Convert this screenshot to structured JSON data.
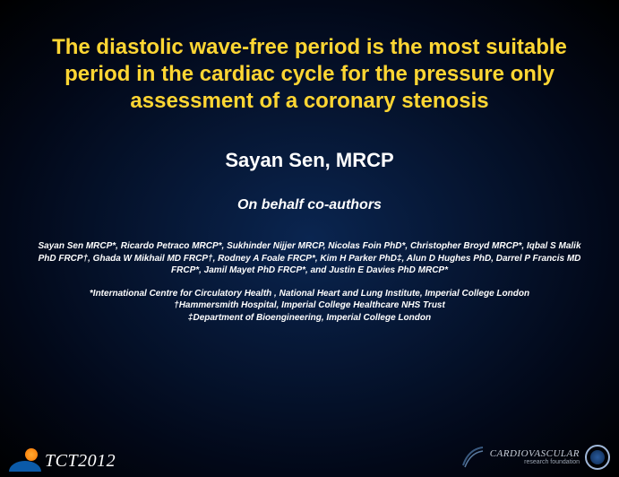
{
  "colors": {
    "title": "#ffd633",
    "text": "#ffffff",
    "bg_center": "#0a2550",
    "bg_edge": "#000000"
  },
  "typography": {
    "title_fontsize": 24,
    "presenter_fontsize": 22,
    "behalf_fontsize": 16,
    "authors_fontsize": 10,
    "family": "Arial"
  },
  "title": "The diastolic wave-free period is the most suitable period in the cardiac cycle for the pressure only assessment of a coronary stenosis",
  "presenter": "Sayan Sen, MRCP",
  "behalf": "On behalf co-authors",
  "authors": "Sayan Sen MRCP*, Ricardo Petraco MRCP*, Sukhinder Nijjer MRCP, Nicolas Foin PhD*, Christopher Broyd MRCP*, Iqbal S Malik PhD FRCP†, Ghada W Mikhail MD FRCP†, Rodney A Foale FRCP*, Kim H Parker PhD‡, Alun D Hughes PhD, Darrel P Francis MD FRCP*, Jamil Mayet PhD FRCP*, and Justin E Davies PhD MRCP*",
  "affiliations": "*International Centre for Circulatory Health , National Heart and Lung Institute, Imperial College London\n†Hammersmith Hospital, Imperial College Healthcare NHS Trust\n‡Department of Bioengineering, Imperial College London",
  "footer": {
    "tct_label": "TCT2012",
    "crf_main": "CARDIOVASCULAR",
    "crf_sub": "research foundation"
  }
}
